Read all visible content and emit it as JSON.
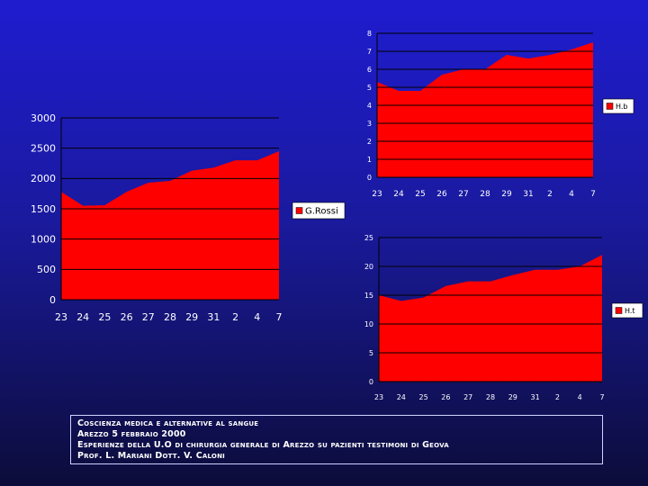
{
  "chart_data": [
    {
      "type": "area",
      "categories": [
        "23",
        "24",
        "25",
        "26",
        "27",
        "28",
        "29",
        "31",
        "2",
        "4",
        "7"
      ],
      "series": [
        {
          "name": "G.Rossi",
          "values": [
            1780,
            1550,
            1560,
            1780,
            1930,
            1960,
            2130,
            2180,
            2300,
            2300,
            2450
          ]
        }
      ],
      "ylim": [
        0,
        3000
      ],
      "yticks": [
        0,
        500,
        1000,
        1500,
        2000,
        2500,
        3000
      ],
      "grid": true,
      "legend": "right",
      "color": "#ff0000"
    },
    {
      "type": "area",
      "categories": [
        "23",
        "24",
        "25",
        "26",
        "27",
        "28",
        "29",
        "31",
        "2",
        "4",
        "7"
      ],
      "series": [
        {
          "name": "H.b",
          "values": [
            5.3,
            4.8,
            4.8,
            5.7,
            6.0,
            6.0,
            6.8,
            6.6,
            6.8,
            7.1,
            7.5
          ]
        }
      ],
      "ylim": [
        0,
        8
      ],
      "yticks": [
        0,
        1,
        2,
        3,
        4,
        5,
        6,
        7,
        8
      ],
      "grid": true,
      "legend": "right",
      "color": "#ff0000"
    },
    {
      "type": "area",
      "categories": [
        "23",
        "24",
        "25",
        "26",
        "27",
        "28",
        "29",
        "31",
        "2",
        "4",
        "7"
      ],
      "series": [
        {
          "name": "H.t",
          "values": [
            15.0,
            14.0,
            14.6,
            16.6,
            17.4,
            17.4,
            18.5,
            19.4,
            19.4,
            20.0,
            22.0
          ]
        }
      ],
      "ylim": [
        0,
        25
      ],
      "yticks": [
        0,
        5,
        10,
        15,
        20,
        25
      ],
      "grid": true,
      "legend": "right",
      "color": "#ff0000"
    }
  ],
  "caption": {
    "line1": "Coscienza medica e alternative al sangue",
    "line2": "Arezzo 5 febbraio 2000",
    "line3": "Esperienze della U.O di chirurgia generale di Arezzo su pazienti testimoni di Geova",
    "line4": "Prof. L. Mariani   Dott. V. Caloni"
  }
}
